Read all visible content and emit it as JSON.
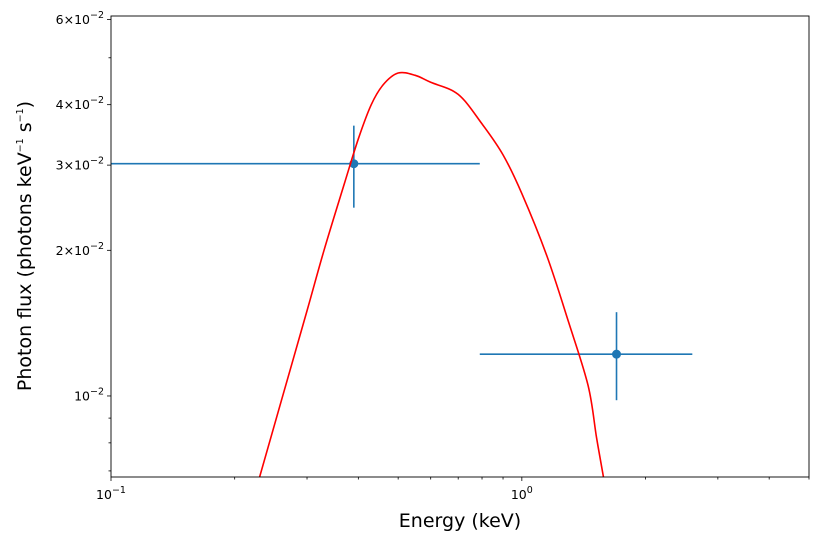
{
  "chart_data": {
    "type": "scatter",
    "title": "",
    "xlabel": "Energy (keV)",
    "ylabel": {
      "pre": "Photon flux (photons keV",
      "sup1": "−1",
      "mid": " s",
      "sup2": "−1",
      "post": ")"
    },
    "xscale": "log",
    "yscale": "log",
    "xlim": [
      0.1,
      5.0
    ],
    "ylim": [
      0.0068,
      0.061
    ],
    "grid": false,
    "x_ticks": [
      {
        "value": 0.1,
        "base": "10",
        "exp": "−1"
      },
      {
        "value": 1.0,
        "base": "10",
        "exp": "0"
      }
    ],
    "y_ticks": [
      {
        "value": 0.01,
        "base": "10",
        "exp": "−2",
        "mult": ""
      },
      {
        "value": 0.02,
        "base": "10",
        "exp": "−2",
        "mult": "2×"
      },
      {
        "value": 0.03,
        "base": "10",
        "exp": "−2",
        "mult": "3×"
      },
      {
        "value": 0.04,
        "base": "10",
        "exp": "−2",
        "mult": "4×"
      },
      {
        "value": 0.06,
        "base": "10",
        "exp": "−2",
        "mult": "6×"
      }
    ],
    "series": [
      {
        "kind": "errorbar",
        "color": "#1f77b4",
        "points": [
          {
            "x": 0.39,
            "y": 0.0302,
            "xlo": 0.1,
            "xhi": 0.79,
            "ylo": 0.0245,
            "yhi": 0.0362
          },
          {
            "x": 1.7,
            "y": 0.0122,
            "xlo": 0.79,
            "xhi": 2.6,
            "ylo": 0.0098,
            "yhi": 0.0149
          }
        ]
      },
      {
        "kind": "line",
        "color": "#ff0000",
        "x": [
          0.23,
          0.26,
          0.3,
          0.33,
          0.37,
          0.4,
          0.43,
          0.46,
          0.5,
          0.55,
          0.6,
          0.7,
          0.8,
          0.9,
          1.0,
          1.15,
          1.3,
          1.45,
          1.52,
          1.58
        ],
        "y": [
          0.0068,
          0.0098,
          0.015,
          0.02,
          0.0275,
          0.034,
          0.04,
          0.044,
          0.0465,
          0.046,
          0.0445,
          0.042,
          0.0365,
          0.0315,
          0.0262,
          0.0195,
          0.0142,
          0.0105,
          0.0082,
          0.0068
        ]
      }
    ]
  }
}
